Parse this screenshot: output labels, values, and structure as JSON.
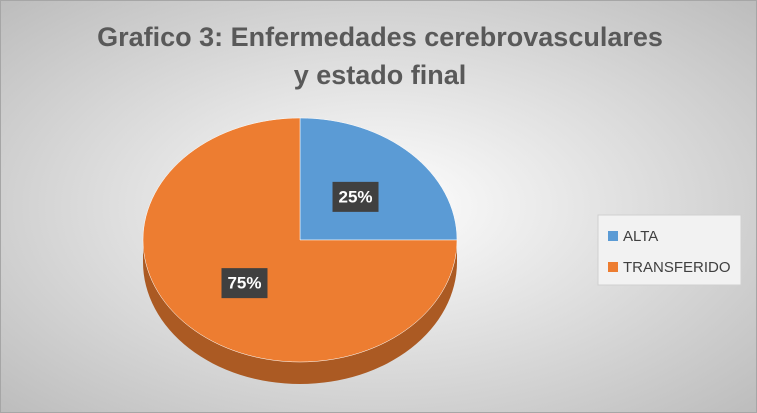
{
  "chart_data": {
    "type": "pie",
    "title": "Grafico 3: Enfermedades cerebrovasculares y estado final",
    "categories": [
      "ALTA",
      "TRANSFERIDO"
    ],
    "values": [
      25,
      75
    ],
    "value_labels": [
      "25%",
      "75%"
    ],
    "colors": [
      "#5b9bd5",
      "#ed7d31"
    ],
    "legend": "right"
  }
}
